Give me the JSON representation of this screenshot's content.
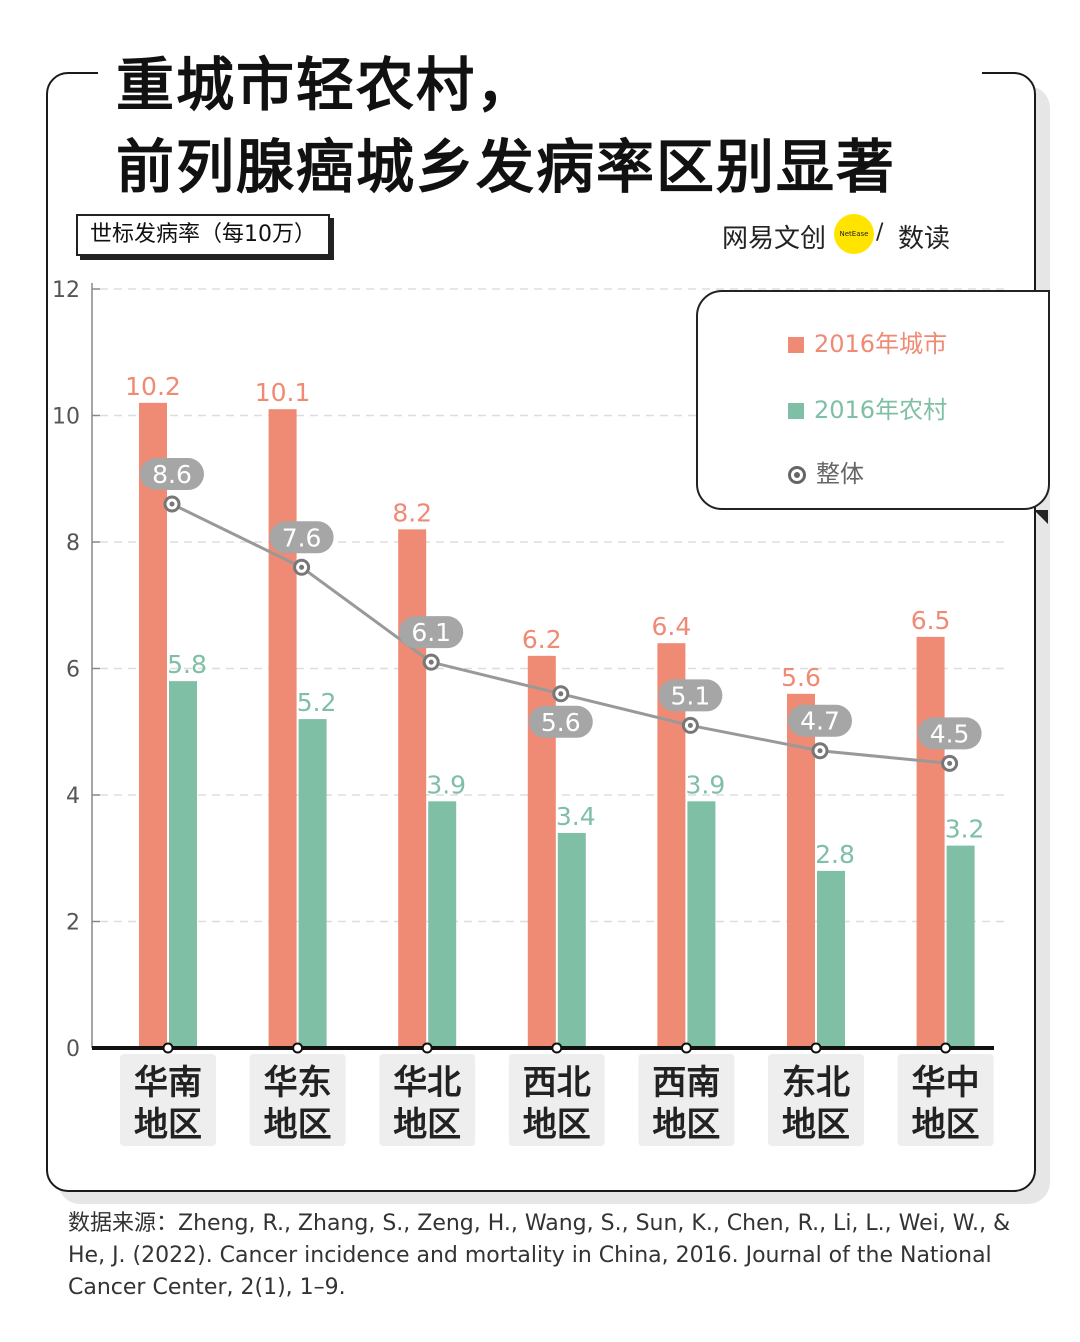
{
  "title_lines": [
    "重城市轻农村，",
    "前列腺癌城乡发病率区别显著"
  ],
  "y_axis_label": "世标发病率（每10万）",
  "brand": {
    "part1": "网易文创",
    "dot_text": "NetEase",
    "slash": "/",
    "part2": "数读"
  },
  "legend": {
    "urban": "2016年城市",
    "rural": "2016年农村",
    "overall": "整体"
  },
  "colors": {
    "urban": "#ef8a74",
    "rural": "#7fbfa6",
    "overall_line": "#999999",
    "overall_label_bg": "#a6a6a6",
    "grid": "#dddddd",
    "axis_text": "#555555",
    "category_bg": "#eeeeee"
  },
  "source": "数据来源：Zheng, R., Zhang, S., Zeng, H., Wang, S., Sun, K., Chen, R., Li, L., Wei, W., & He, J. (2022). Cancer incidence and mortality in China, 2016. Journal of the National Cancer Center, 2(1), 1–9.",
  "chart_data": {
    "type": "bar",
    "categories": [
      [
        "华南",
        "地区"
      ],
      [
        "华东",
        "地区"
      ],
      [
        "华北",
        "地区"
      ],
      [
        "西北",
        "地区"
      ],
      [
        "西南",
        "地区"
      ],
      [
        "东北",
        "地区"
      ],
      [
        "华中",
        "地区"
      ]
    ],
    "series": [
      {
        "name": "2016年城市",
        "type": "bar",
        "values": [
          10.2,
          10.1,
          8.2,
          6.2,
          6.4,
          5.6,
          6.5
        ]
      },
      {
        "name": "2016年农村",
        "type": "bar",
        "values": [
          5.8,
          5.2,
          3.9,
          3.4,
          3.9,
          2.8,
          3.2
        ]
      },
      {
        "name": "整体",
        "type": "line",
        "values": [
          8.6,
          7.6,
          6.1,
          5.6,
          5.1,
          4.7,
          4.5
        ]
      }
    ],
    "ylim": [
      0,
      12
    ],
    "yticks": [
      0,
      2,
      4,
      6,
      8,
      10,
      12
    ],
    "grid": true,
    "legend_position": "top-right"
  }
}
